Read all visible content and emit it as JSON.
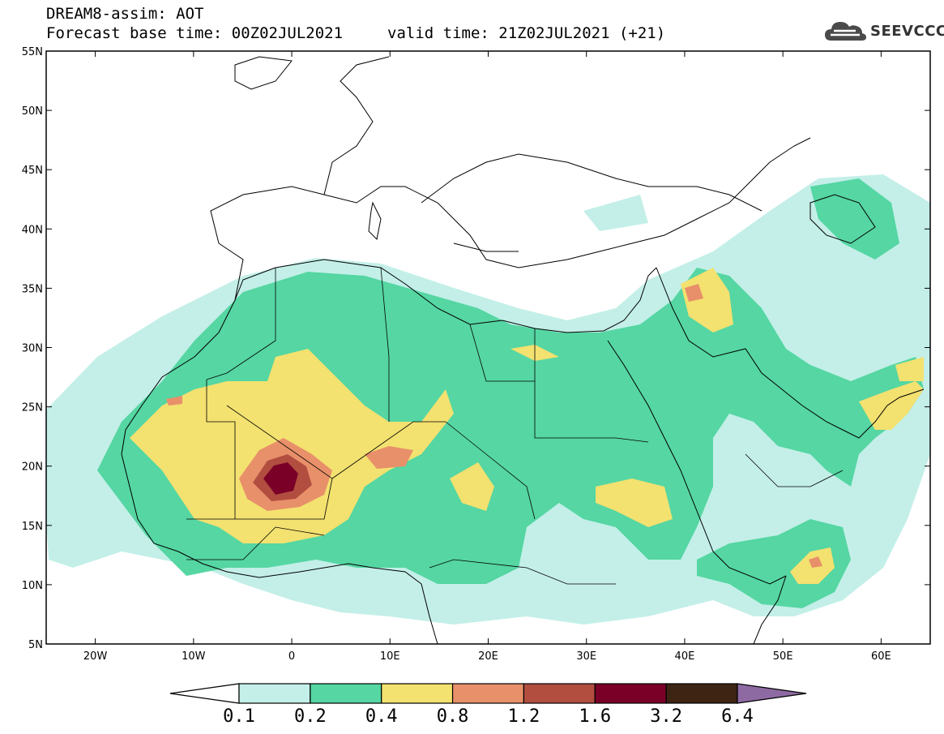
{
  "header": {
    "line1": "DREAM8-assim: AOT",
    "line2": "Forecast base time: 00Z02JUL2021",
    "valid": "valid time: 21Z02JUL2021 (+21)"
  },
  "logo": {
    "text": "SEEVCCC",
    "icon": "cloud-icon"
  },
  "axes": {
    "lat_labels": [
      "55N",
      "50N",
      "45N",
      "40N",
      "35N",
      "30N",
      "25N",
      "20N",
      "15N",
      "10N",
      "5N"
    ],
    "lon_labels": [
      "20W",
      "10W",
      "0",
      "10E",
      "20E",
      "30E",
      "40E",
      "50E",
      "60E"
    ]
  },
  "colorbar": {
    "levels": [
      "0.1",
      "0.2",
      "0.4",
      "0.8",
      "1.2",
      "1.6",
      "3.2",
      "6.4"
    ],
    "colors": [
      "#ffffff",
      "#c3efe8",
      "#55d6a3",
      "#f3e170",
      "#e8906a",
      "#b24e40",
      "#7b0028",
      "#3d2413",
      "#8e6aa2"
    ]
  },
  "colors": {
    "c1": "#c3efe8",
    "c2": "#55d6a3",
    "c3": "#f3e170",
    "c4": "#e8906a",
    "c5": "#b24e40",
    "c6": "#7b0028"
  }
}
